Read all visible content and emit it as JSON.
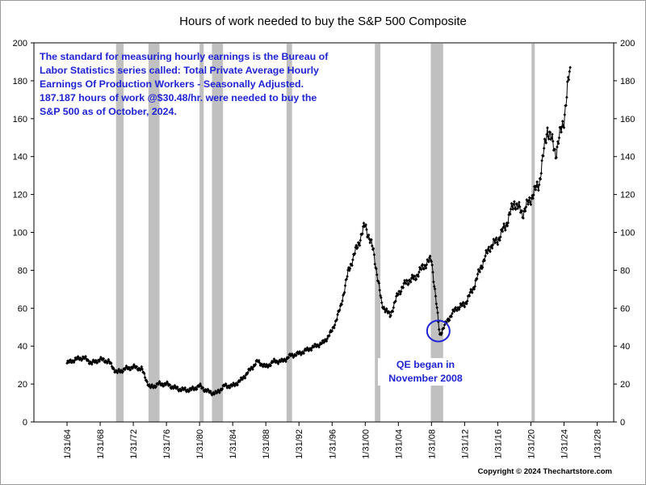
{
  "chart_data": {
    "type": "line",
    "title": "Hours of work needed to buy the S&P 500 Composite",
    "xlabel": "",
    "ylabel": "",
    "ylim": [
      0,
      200
    ],
    "xlim": [
      "1/31/60",
      "1/31/30"
    ],
    "yticks": [
      0,
      20,
      40,
      60,
      80,
      100,
      120,
      140,
      160,
      180,
      200
    ],
    "xticks": [
      "1/31/64",
      "1/31/68",
      "1/31/72",
      "1/31/76",
      "1/31/80",
      "1/31/84",
      "1/31/88",
      "1/31/92",
      "1/31/96",
      "1/31/00",
      "1/31/04",
      "1/31/08",
      "1/31/12",
      "1/31/16",
      "1/31/20",
      "1/31/24",
      "1/31/28"
    ],
    "grid": false,
    "series": [
      {
        "marker": "diamond",
        "color": "#000000",
        "x": [
          "1/31/64",
          "1/31/65",
          "1/31/66",
          "1/31/67",
          "1/31/68",
          "1/31/69",
          "1/31/70",
          "1/31/71",
          "1/31/72",
          "1/31/73",
          "1/31/74",
          "1/31/75",
          "1/31/76",
          "1/31/77",
          "1/31/78",
          "1/31/79",
          "1/31/80",
          "1/31/81",
          "1/31/82",
          "1/31/83",
          "1/31/84",
          "1/31/85",
          "1/31/86",
          "1/31/87",
          "1/31/88",
          "1/31/89",
          "1/31/90",
          "1/31/91",
          "1/31/92",
          "1/31/93",
          "1/31/94",
          "1/31/95",
          "1/31/96",
          "1/31/97",
          "1/31/98",
          "1/31/99",
          "1/31/00",
          "1/31/01",
          "1/31/02",
          "1/31/03",
          "1/31/04",
          "1/31/05",
          "1/31/06",
          "1/31/07",
          "1/31/08",
          "1/31/09",
          "1/31/10",
          "1/31/11",
          "1/31/12",
          "1/31/13",
          "1/31/14",
          "1/31/15",
          "1/31/16",
          "1/31/17",
          "1/31/18",
          "1/31/19",
          "1/31/20",
          "1/31/21",
          "1/31/22",
          "1/31/23",
          "1/31/24",
          "10/31/24"
        ],
        "y": [
          31,
          33,
          34,
          31,
          33,
          32,
          26,
          28,
          29,
          28,
          18,
          20,
          20,
          18,
          17,
          17,
          19,
          16,
          15,
          19,
          19,
          22,
          27,
          32,
          29,
          32,
          32,
          35,
          36,
          38,
          40,
          42,
          48,
          60,
          80,
          92,
          104,
          90,
          62,
          56,
          68,
          74,
          76,
          82,
          86,
          46,
          54,
          60,
          62,
          70,
          82,
          92,
          96,
          104,
          116,
          110,
          118,
          126,
          155,
          142,
          160,
          187
        ]
      }
    ],
    "recessions": [
      {
        "start": "12/31/69",
        "end": "11/30/70"
      },
      {
        "start": "11/30/73",
        "end": "3/31/75"
      },
      {
        "start": "1/31/80",
        "end": "7/31/80"
      },
      {
        "start": "7/31/81",
        "end": "11/30/82"
      },
      {
        "start": "7/31/90",
        "end": "3/31/91"
      },
      {
        "start": "3/31/01",
        "end": "11/30/01"
      },
      {
        "start": "12/31/07",
        "end": "6/30/09"
      },
      {
        "start": "2/29/20",
        "end": "4/30/20"
      }
    ],
    "annotations": {
      "note_lines": [
        "The standard for measuring hourly earnings is the Bureau of",
        "Labor Statistics series called:  Total Private Average Hourly",
        "Earnings Of Production Workers - Seasonally Adjusted.",
        "187.187 hours of work @$30.48/hr. were needed to buy the",
        "S&P 500 as of October, 2024."
      ],
      "qe_lines": [
        "QE began in",
        "November 2008"
      ],
      "qe_circle": {
        "x": "11/30/08",
        "y": 48
      },
      "copyright": "Copyright © 2024 Thechartstore.com"
    }
  },
  "colors": {
    "recession_shade": "#c0c0c0",
    "note_text": "#1f24d6",
    "qe_circle": "#1f24d6",
    "line": "#000000"
  }
}
